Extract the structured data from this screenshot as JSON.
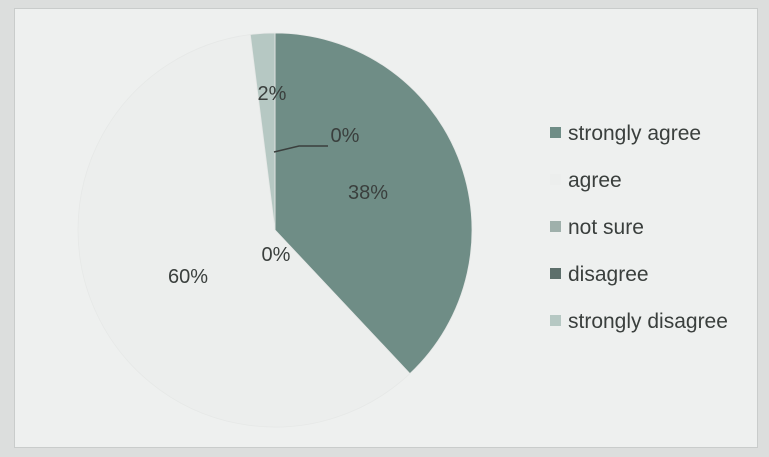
{
  "chart_data": {
    "type": "pie",
    "title": "",
    "slices": [
      {
        "label": "strongly agree",
        "value": 38,
        "display": "38%",
        "color": "#6f8d86"
      },
      {
        "label": "agree",
        "value": 60,
        "display": "60%",
        "color": "#eceeed"
      },
      {
        "label": "not sure",
        "value": 0,
        "display": "0%",
        "color": "#9fb0ab"
      },
      {
        "label": "disagree",
        "value": 0,
        "display": "0%",
        "color": "#5d6f6b"
      },
      {
        "label": "strongly disagree",
        "value": 2,
        "display": "2%",
        "color": "#b6c8c3"
      }
    ],
    "legend": {
      "position": "right"
    }
  }
}
